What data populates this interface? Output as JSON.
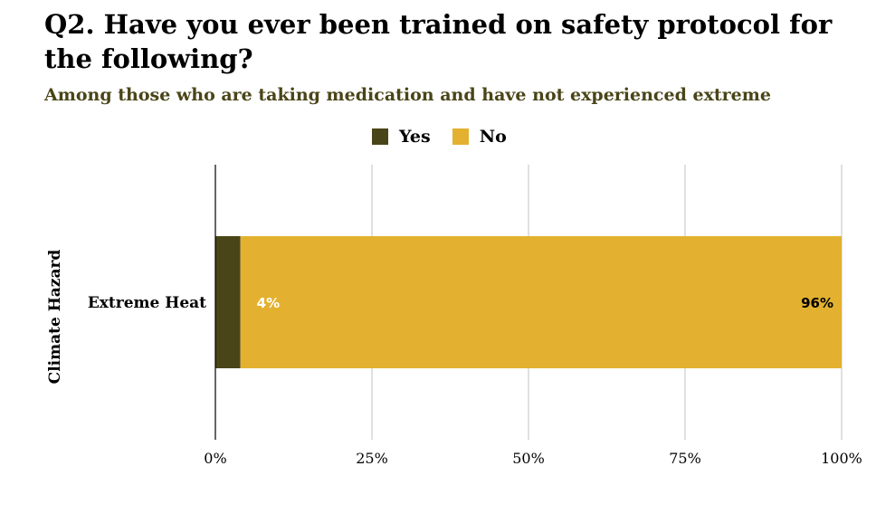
{
  "title": "Q2. Have you ever been trained on safety protocol for the following?",
  "subtitle": "Among those who are taking medication and have not experienced extreme",
  "colors": {
    "yes": "#4a4518",
    "no": "#e3b12f",
    "subtitle": "#4a4518",
    "grid": "#cccccc",
    "axis": "#000000"
  },
  "legend": {
    "position": "top",
    "items": [
      {
        "label": "Yes",
        "color": "#4a4518"
      },
      {
        "label": "No",
        "color": "#e3b12f"
      }
    ]
  },
  "chart_data": {
    "type": "bar",
    "orientation": "horizontal",
    "stacked": true,
    "categories": [
      "Extreme Heat"
    ],
    "series": [
      {
        "name": "Yes",
        "values": [
          4
        ],
        "labels": [
          "4%"
        ],
        "color": "#4a4518",
        "label_color": "#ffffff"
      },
      {
        "name": "No",
        "values": [
          96
        ],
        "labels": [
          "96%"
        ],
        "color": "#e3b12f",
        "label_color": "#000000"
      }
    ],
    "xlabel": "",
    "ylabel": "Climate Hazard",
    "xlim": [
      0,
      100
    ],
    "ticks": [
      {
        "value": 0,
        "label": "0%"
      },
      {
        "value": 25,
        "label": "25%"
      },
      {
        "value": 50,
        "label": "50%"
      },
      {
        "value": 75,
        "label": "75%"
      },
      {
        "value": 100,
        "label": "100%"
      }
    ],
    "grid": true
  }
}
